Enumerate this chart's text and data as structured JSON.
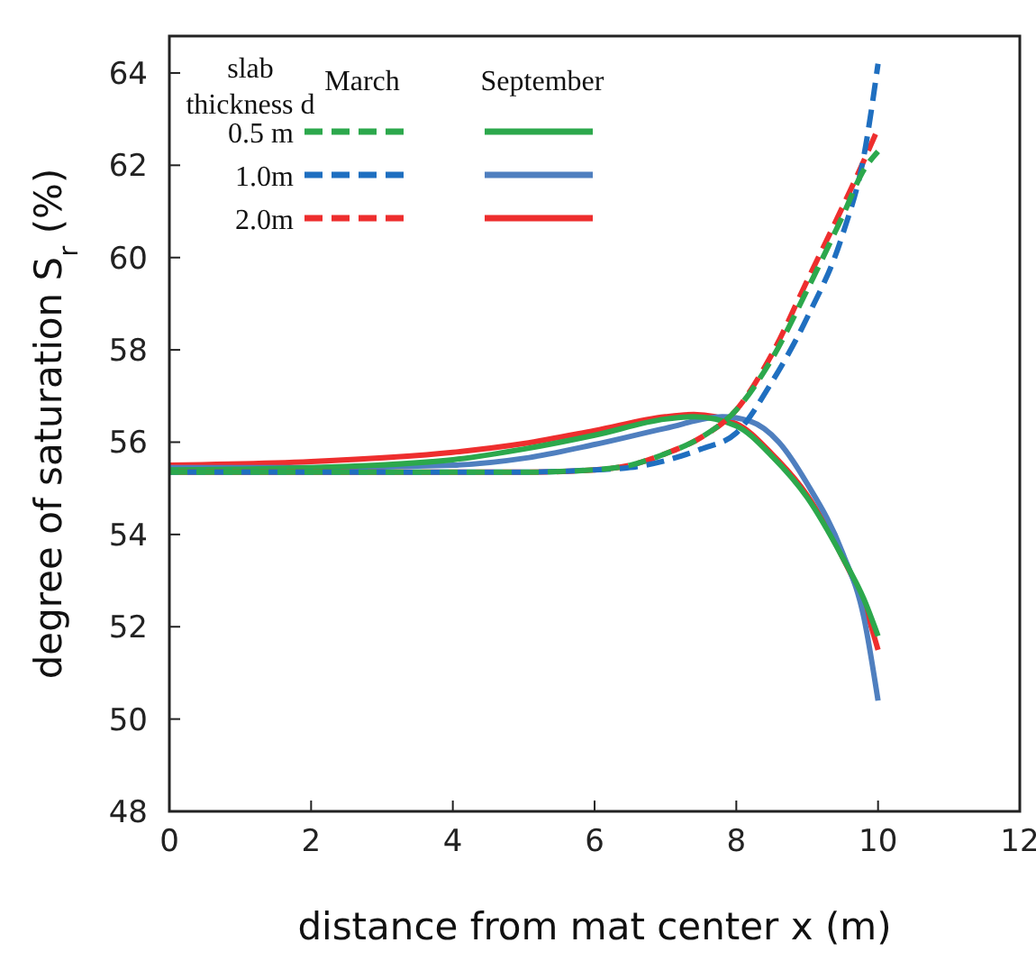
{
  "chart_data": {
    "type": "line",
    "xlabel": "distance from mat center x (m)",
    "ylabel": "degree of saturation S$_{r}$ (%)",
    "xlim": [
      0,
      12
    ],
    "xticks": [
      0,
      2,
      4,
      6,
      8,
      10,
      12
    ],
    "ylim": [
      48,
      64.8
    ],
    "yticks": [
      48,
      50,
      52,
      54,
      56,
      58,
      60,
      62,
      64
    ],
    "grid": false,
    "legend": "top left",
    "legend_title": "slab thickness d",
    "annotations": [
      "March",
      "September"
    ],
    "series": [
      {
        "name": "0.5 m",
        "color": "#2ca84c",
        "line_style": "dashed",
        "x": [
          0,
          2,
          4,
          5,
          6,
          6.5,
          7,
          7.5,
          8,
          8.5,
          9,
          9.5,
          9.8,
          10
        ],
        "values": [
          55.35,
          55.35,
          55.35,
          55.35,
          55.4,
          55.5,
          55.75,
          56.1,
          56.7,
          57.8,
          59.3,
          60.9,
          61.9,
          62.3
        ]
      },
      {
        "name": "1.0m",
        "color": "#1f6fc0",
        "line_style": "dashed",
        "x": [
          0,
          2,
          4,
          5,
          6,
          6.5,
          7,
          7.5,
          8,
          8.5,
          9,
          9.5,
          9.8,
          10
        ],
        "values": [
          55.35,
          55.35,
          55.35,
          55.35,
          55.4,
          55.45,
          55.6,
          55.85,
          56.2,
          57.3,
          58.7,
          60.5,
          62.2,
          64.2
        ]
      },
      {
        "name": "2.0m",
        "color": "#ee2e2e",
        "line_style": "dashed",
        "x": [
          0,
          2,
          4,
          5,
          6,
          6.5,
          7,
          7.5,
          8,
          8.5,
          9,
          9.5,
          9.8,
          10
        ],
        "values": [
          55.35,
          55.35,
          55.35,
          55.35,
          55.4,
          55.5,
          55.75,
          56.1,
          56.7,
          57.9,
          59.5,
          61.1,
          62.1,
          62.8
        ]
      },
      {
        "color": "#2ca84c",
        "line_style": "solid",
        "x": [
          0,
          2,
          4,
          5,
          6,
          7,
          7.4,
          8,
          8.5,
          9,
          9.5,
          9.8,
          10
        ],
        "values": [
          55.4,
          55.45,
          55.62,
          55.85,
          56.15,
          56.5,
          56.55,
          56.35,
          55.7,
          54.8,
          53.5,
          52.6,
          51.8
        ]
      },
      {
        "color": "#4f7fbf",
        "line_style": "solid",
        "x": [
          0,
          2,
          4,
          5,
          6,
          7,
          7.8,
          8.2,
          8.6,
          9,
          9.5,
          9.8,
          10
        ],
        "values": [
          55.45,
          55.45,
          55.5,
          55.65,
          55.95,
          56.3,
          56.55,
          56.45,
          56.0,
          55.1,
          53.6,
          52.2,
          50.4
        ]
      },
      {
        "color": "#ee2e2e",
        "line_style": "solid",
        "x": [
          0,
          2,
          4,
          5,
          6,
          7,
          7.4,
          8,
          8.5,
          9,
          9.5,
          9.8,
          10
        ],
        "values": [
          55.5,
          55.58,
          55.78,
          55.97,
          56.25,
          56.55,
          56.6,
          56.4,
          55.75,
          54.85,
          53.5,
          52.5,
          51.5
        ]
      }
    ]
  }
}
